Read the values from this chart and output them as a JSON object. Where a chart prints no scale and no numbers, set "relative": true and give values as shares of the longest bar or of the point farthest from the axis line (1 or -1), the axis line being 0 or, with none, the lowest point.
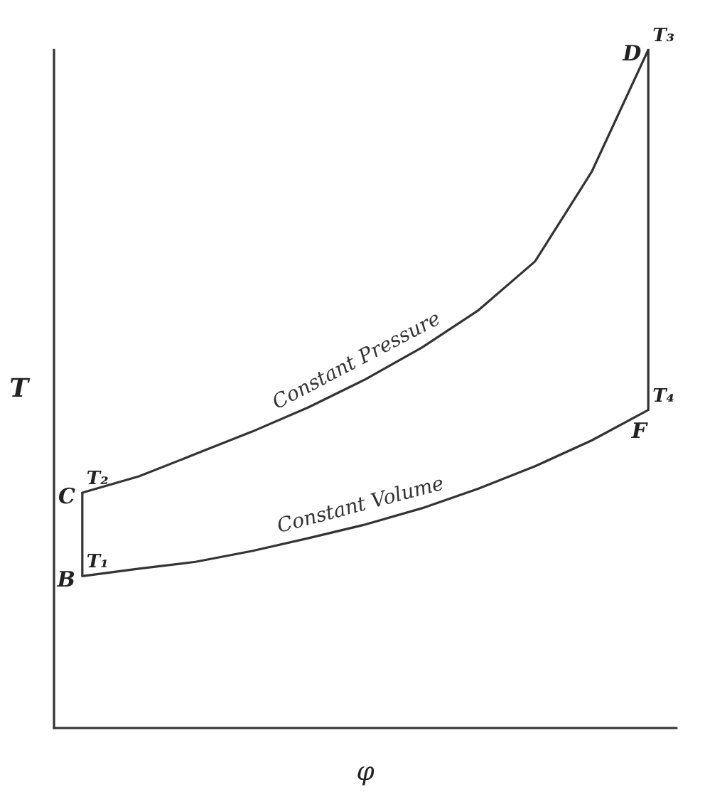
{
  "chart_data": {
    "type": "line",
    "relative": true,
    "xlabel": "φ",
    "ylabel": "T",
    "marker": "none",
    "line_style": "solid",
    "categories": [
      null,
      null,
      null,
      null,
      null,
      null,
      null,
      null,
      null,
      null,
      null
    ],
    "series": [
      {
        "name": "Constant Pressure",
        "color": "#333333",
        "values": [
          0.347,
          0.371,
          0.404,
          0.437,
          0.473,
          0.514,
          0.561,
          0.616,
          0.688,
          0.82,
          1
        ]
      },
      {
        "name": "Constant Volume",
        "color": "#333333",
        "values": [
          0.224,
          0.235,
          0.245,
          0.261,
          0.28,
          0.3,
          0.324,
          0.353,
          0.386,
          0.424,
          0.469
        ]
      }
    ],
    "annotations": [
      "B",
      "T₁",
      "C",
      "T₂",
      "D",
      "T₃",
      "F",
      "T₄"
    ]
  }
}
